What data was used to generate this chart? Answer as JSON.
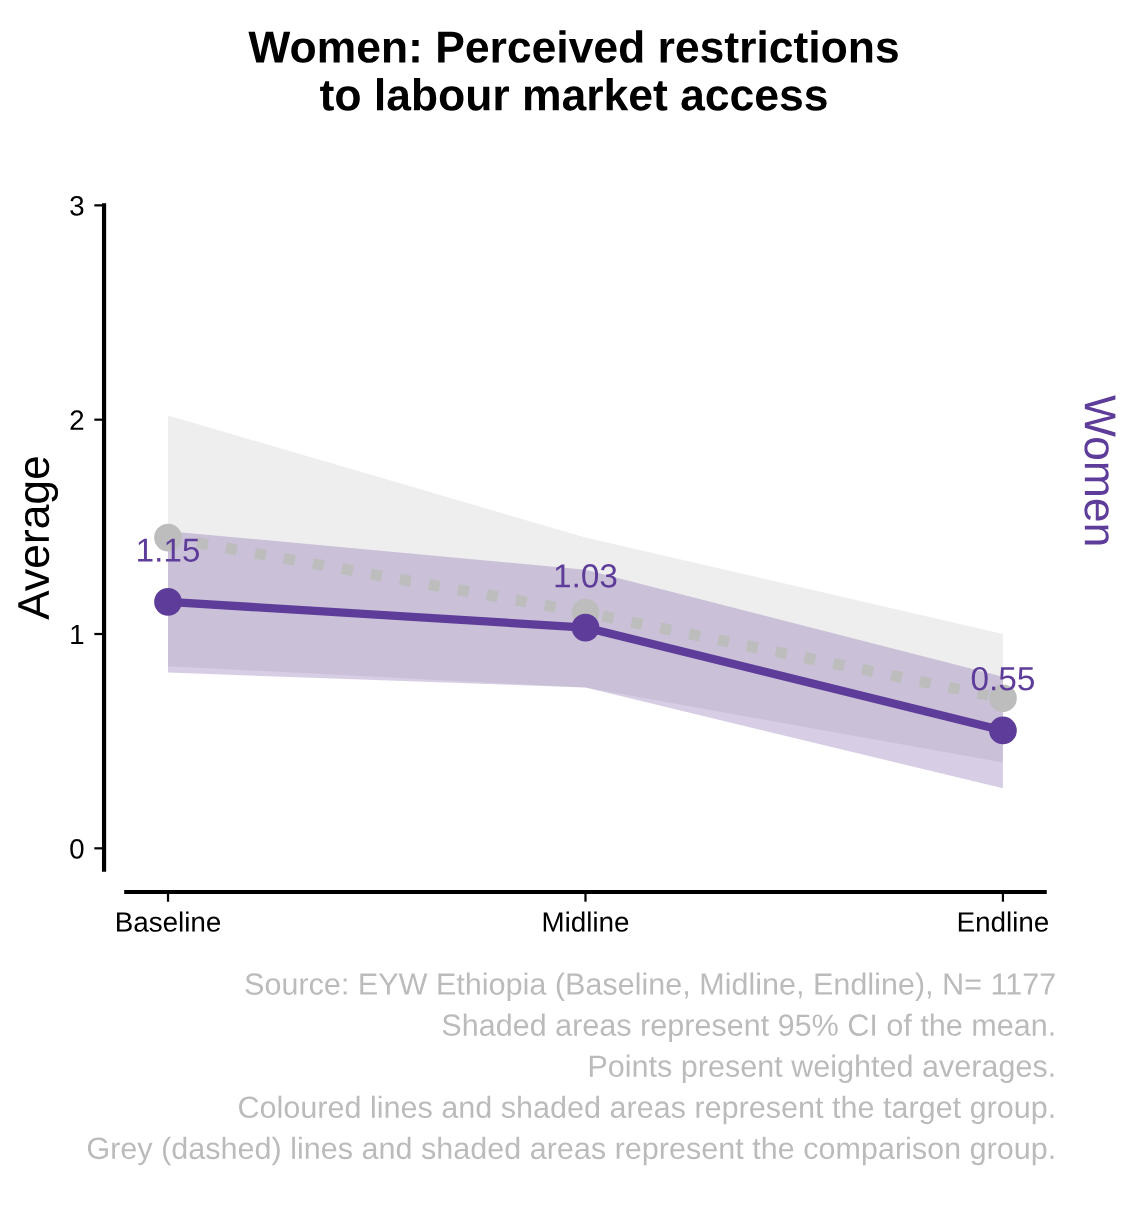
{
  "chart_data": {
    "type": "line",
    "title": "Women: Perceived restrictions\nto labour market access",
    "ylabel": "Average",
    "y2label": "Women",
    "categories": [
      "Baseline",
      "Midline",
      "Endline"
    ],
    "series": [
      {
        "color": "#bdbdbd",
        "values": [
          1.45,
          1.1,
          0.7
        ],
        "lower": [
          0.85,
          0.75,
          0.4
        ],
        "upper": [
          2.02,
          1.45,
          1.0
        ],
        "line_style": "dotted",
        "marker": "circle"
      },
      {
        "color": "#5e3c99",
        "values": [
          1.15,
          1.03,
          0.55
        ],
        "lower": [
          0.82,
          0.75,
          0.28
        ],
        "upper": [
          1.48,
          1.3,
          0.8
        ],
        "line_style": "solid",
        "marker": "circle",
        "value_labels": [
          "1.15",
          "1.03",
          "0.55"
        ]
      }
    ],
    "ylim": [
      -0.1,
      3
    ],
    "yticks": [
      0,
      1,
      2,
      3
    ],
    "grid": false,
    "legend": false,
    "annotations": [
      "Source: EYW Ethiopia (Baseline, Midline, Endline), N= 1177",
      "Shaded areas represent 95% CI of the mean.",
      "Points present weighted averages.",
      "Coloured lines and shaded areas represent the target group.",
      "Grey (dashed) lines and shaded areas represent the comparison group."
    ]
  }
}
